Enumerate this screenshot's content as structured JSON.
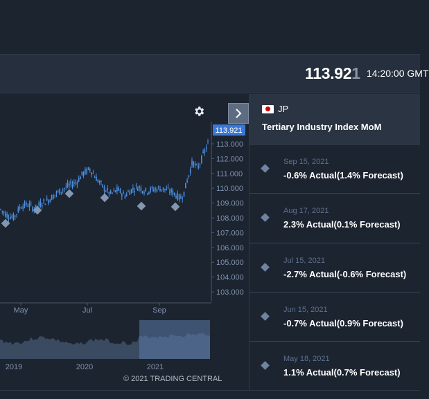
{
  "header": {
    "price_main": "113.92",
    "price_dim": "1",
    "time": "14:20:00 GMT"
  },
  "chart": {
    "current_price_label": "113.921",
    "y_ticks": [
      "113.000",
      "112.000",
      "111.000",
      "110.000",
      "109.000",
      "108.000",
      "107.000",
      "106.000",
      "105.000",
      "104.000",
      "103.000"
    ],
    "x_ticks": [
      "May",
      "Jul",
      "Sep"
    ],
    "nav_ticks": [
      "2019",
      "2020",
      "2021"
    ],
    "copyright": "© 2021 TRADING CENTRAL",
    "icons": {
      "settings": "gear-icon",
      "toggle": "chevron-right-icon"
    }
  },
  "panel": {
    "country": "JP",
    "event_title": "Tertiary Industry Index MoM",
    "events": [
      {
        "date": "Sep 15, 2021",
        "value": "-0.6% Actual(1.4% Forecast)"
      },
      {
        "date": "Aug 17, 2021",
        "value": "2.3% Actual(0.1% Forecast)"
      },
      {
        "date": "Jul 15, 2021",
        "value": "-2.7% Actual(-0.6% Forecast)"
      },
      {
        "date": "Jun 15, 2021",
        "value": "-0.7% Actual(0.9% Forecast)"
      },
      {
        "date": "May 18, 2021",
        "value": "1.1% Actual(0.7% Forecast)"
      }
    ]
  },
  "colors": {
    "background": "#1c2430",
    "panel_header": "#2a3442",
    "candle": "#4a90e2",
    "price_tag": "#3a78d6",
    "marker": "#6f84a0"
  }
}
